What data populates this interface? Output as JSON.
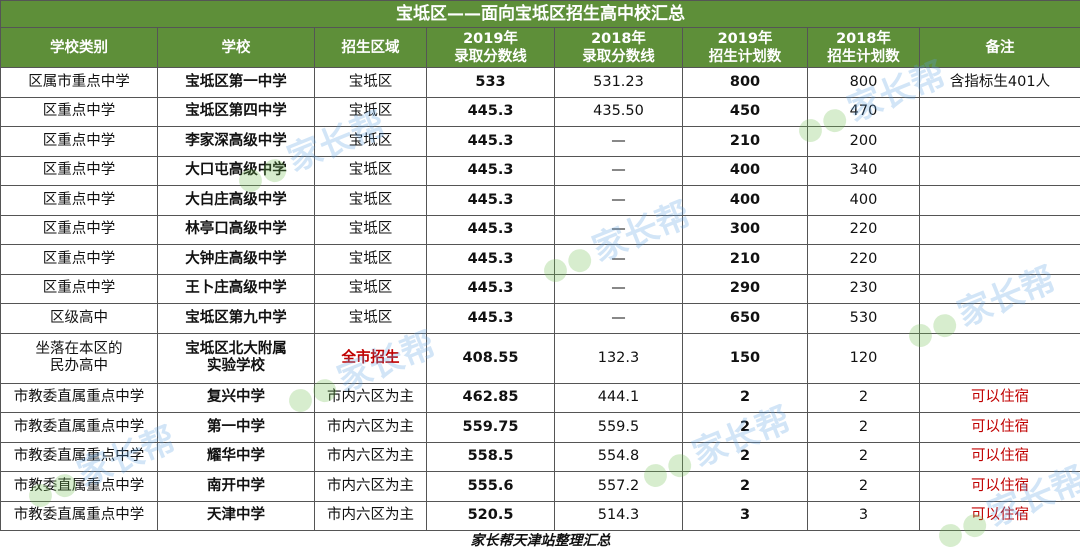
{
  "title": "宝坻区——面向宝坻区招生高中校汇总",
  "headers": {
    "type": "学校类别",
    "school": "学校",
    "area": "招生区域",
    "score2019_l1": "2019年",
    "score2019_l2": "录取分数线",
    "score2018_l1": "2018年",
    "score2018_l2": "录取分数线",
    "plan2019_l1": "2019年",
    "plan2019_l2": "招生计划数",
    "plan2018_l1": "2018年",
    "plan2018_l2": "招生计划数",
    "note": "备注"
  },
  "rows": [
    {
      "type": "区属市重点中学",
      "school": "宝坻区第一中学",
      "area": "宝坻区",
      "score2019": "533",
      "score2018": "531.23",
      "plan2019": "800",
      "plan2018": "800",
      "note": "含指标生401人"
    },
    {
      "type": "区重点中学",
      "school": "宝坻区第四中学",
      "area": "宝坻区",
      "score2019": "445.3",
      "score2018": "435.50",
      "plan2019": "450",
      "plan2018": "470",
      "note": ""
    },
    {
      "type": "区重点中学",
      "school": "李家深高级中学",
      "area": "宝坻区",
      "score2019": "445.3",
      "score2018": "—",
      "plan2019": "210",
      "plan2018": "200",
      "note": ""
    },
    {
      "type": "区重点中学",
      "school": "大口屯高级中学",
      "area": "宝坻区",
      "score2019": "445.3",
      "score2018": "—",
      "plan2019": "400",
      "plan2018": "340",
      "note": ""
    },
    {
      "type": "区重点中学",
      "school": "大白庄高级中学",
      "area": "宝坻区",
      "score2019": "445.3",
      "score2018": "—",
      "plan2019": "400",
      "plan2018": "400",
      "note": ""
    },
    {
      "type": "区重点中学",
      "school": "林亭口高级中学",
      "area": "宝坻区",
      "score2019": "445.3",
      "score2018": "—",
      "plan2019": "300",
      "plan2018": "220",
      "note": ""
    },
    {
      "type": "区重点中学",
      "school": "大钟庄高级中学",
      "area": "宝坻区",
      "score2019": "445.3",
      "score2018": "—",
      "plan2019": "210",
      "plan2018": "220",
      "note": ""
    },
    {
      "type": "区重点中学",
      "school": "王卜庄高级中学",
      "area": "宝坻区",
      "score2019": "445.3",
      "score2018": "—",
      "plan2019": "290",
      "plan2018": "230",
      "note": ""
    },
    {
      "type": "区级高中",
      "school": "宝坻区第九中学",
      "area": "宝坻区",
      "score2019": "445.3",
      "score2018": "—",
      "plan2019": "650",
      "plan2018": "530",
      "note": ""
    },
    {
      "type_l1": "坐落在本区的",
      "type_l2": "民办高中",
      "school_l1": "宝坻区北大附属",
      "school_l2": "实验学校",
      "area": "全市招生",
      "score2019": "408.55",
      "score2018": "132.3",
      "plan2019": "150",
      "plan2018": "120",
      "note": ""
    },
    {
      "type": "市教委直属重点中学",
      "school": "复兴中学",
      "area": "市内六区为主",
      "score2019": "462.85",
      "score2018": "444.1",
      "plan2019": "2",
      "plan2018": "2",
      "note": "可以住宿"
    },
    {
      "type": "市教委直属重点中学",
      "school": "第一中学",
      "area": "市内六区为主",
      "score2019": "559.75",
      "score2018": "559.5",
      "plan2019": "2",
      "plan2018": "2",
      "note": "可以住宿"
    },
    {
      "type": "市教委直属重点中学",
      "school": "耀华中学",
      "area": "市内六区为主",
      "score2019": "558.5",
      "score2018": "554.8",
      "plan2019": "2",
      "plan2018": "2",
      "note": "可以住宿"
    },
    {
      "type": "市教委直属重点中学",
      "school": "南开中学",
      "area": "市内六区为主",
      "score2019": "555.6",
      "score2018": "557.2",
      "plan2019": "2",
      "plan2018": "2",
      "note": "可以住宿"
    },
    {
      "type": "市教委直属重点中学",
      "school": "天津中学",
      "area": "市内六区为主",
      "score2019": "520.5",
      "score2018": "514.3",
      "plan2019": "3",
      "plan2018": "3",
      "note": "可以住宿"
    }
  ],
  "footer": "家长帮天津站整理汇总",
  "watermark": {
    "text": "家长帮",
    "icon": "colored-dots-logo",
    "color": "#5fa0e1"
  }
}
